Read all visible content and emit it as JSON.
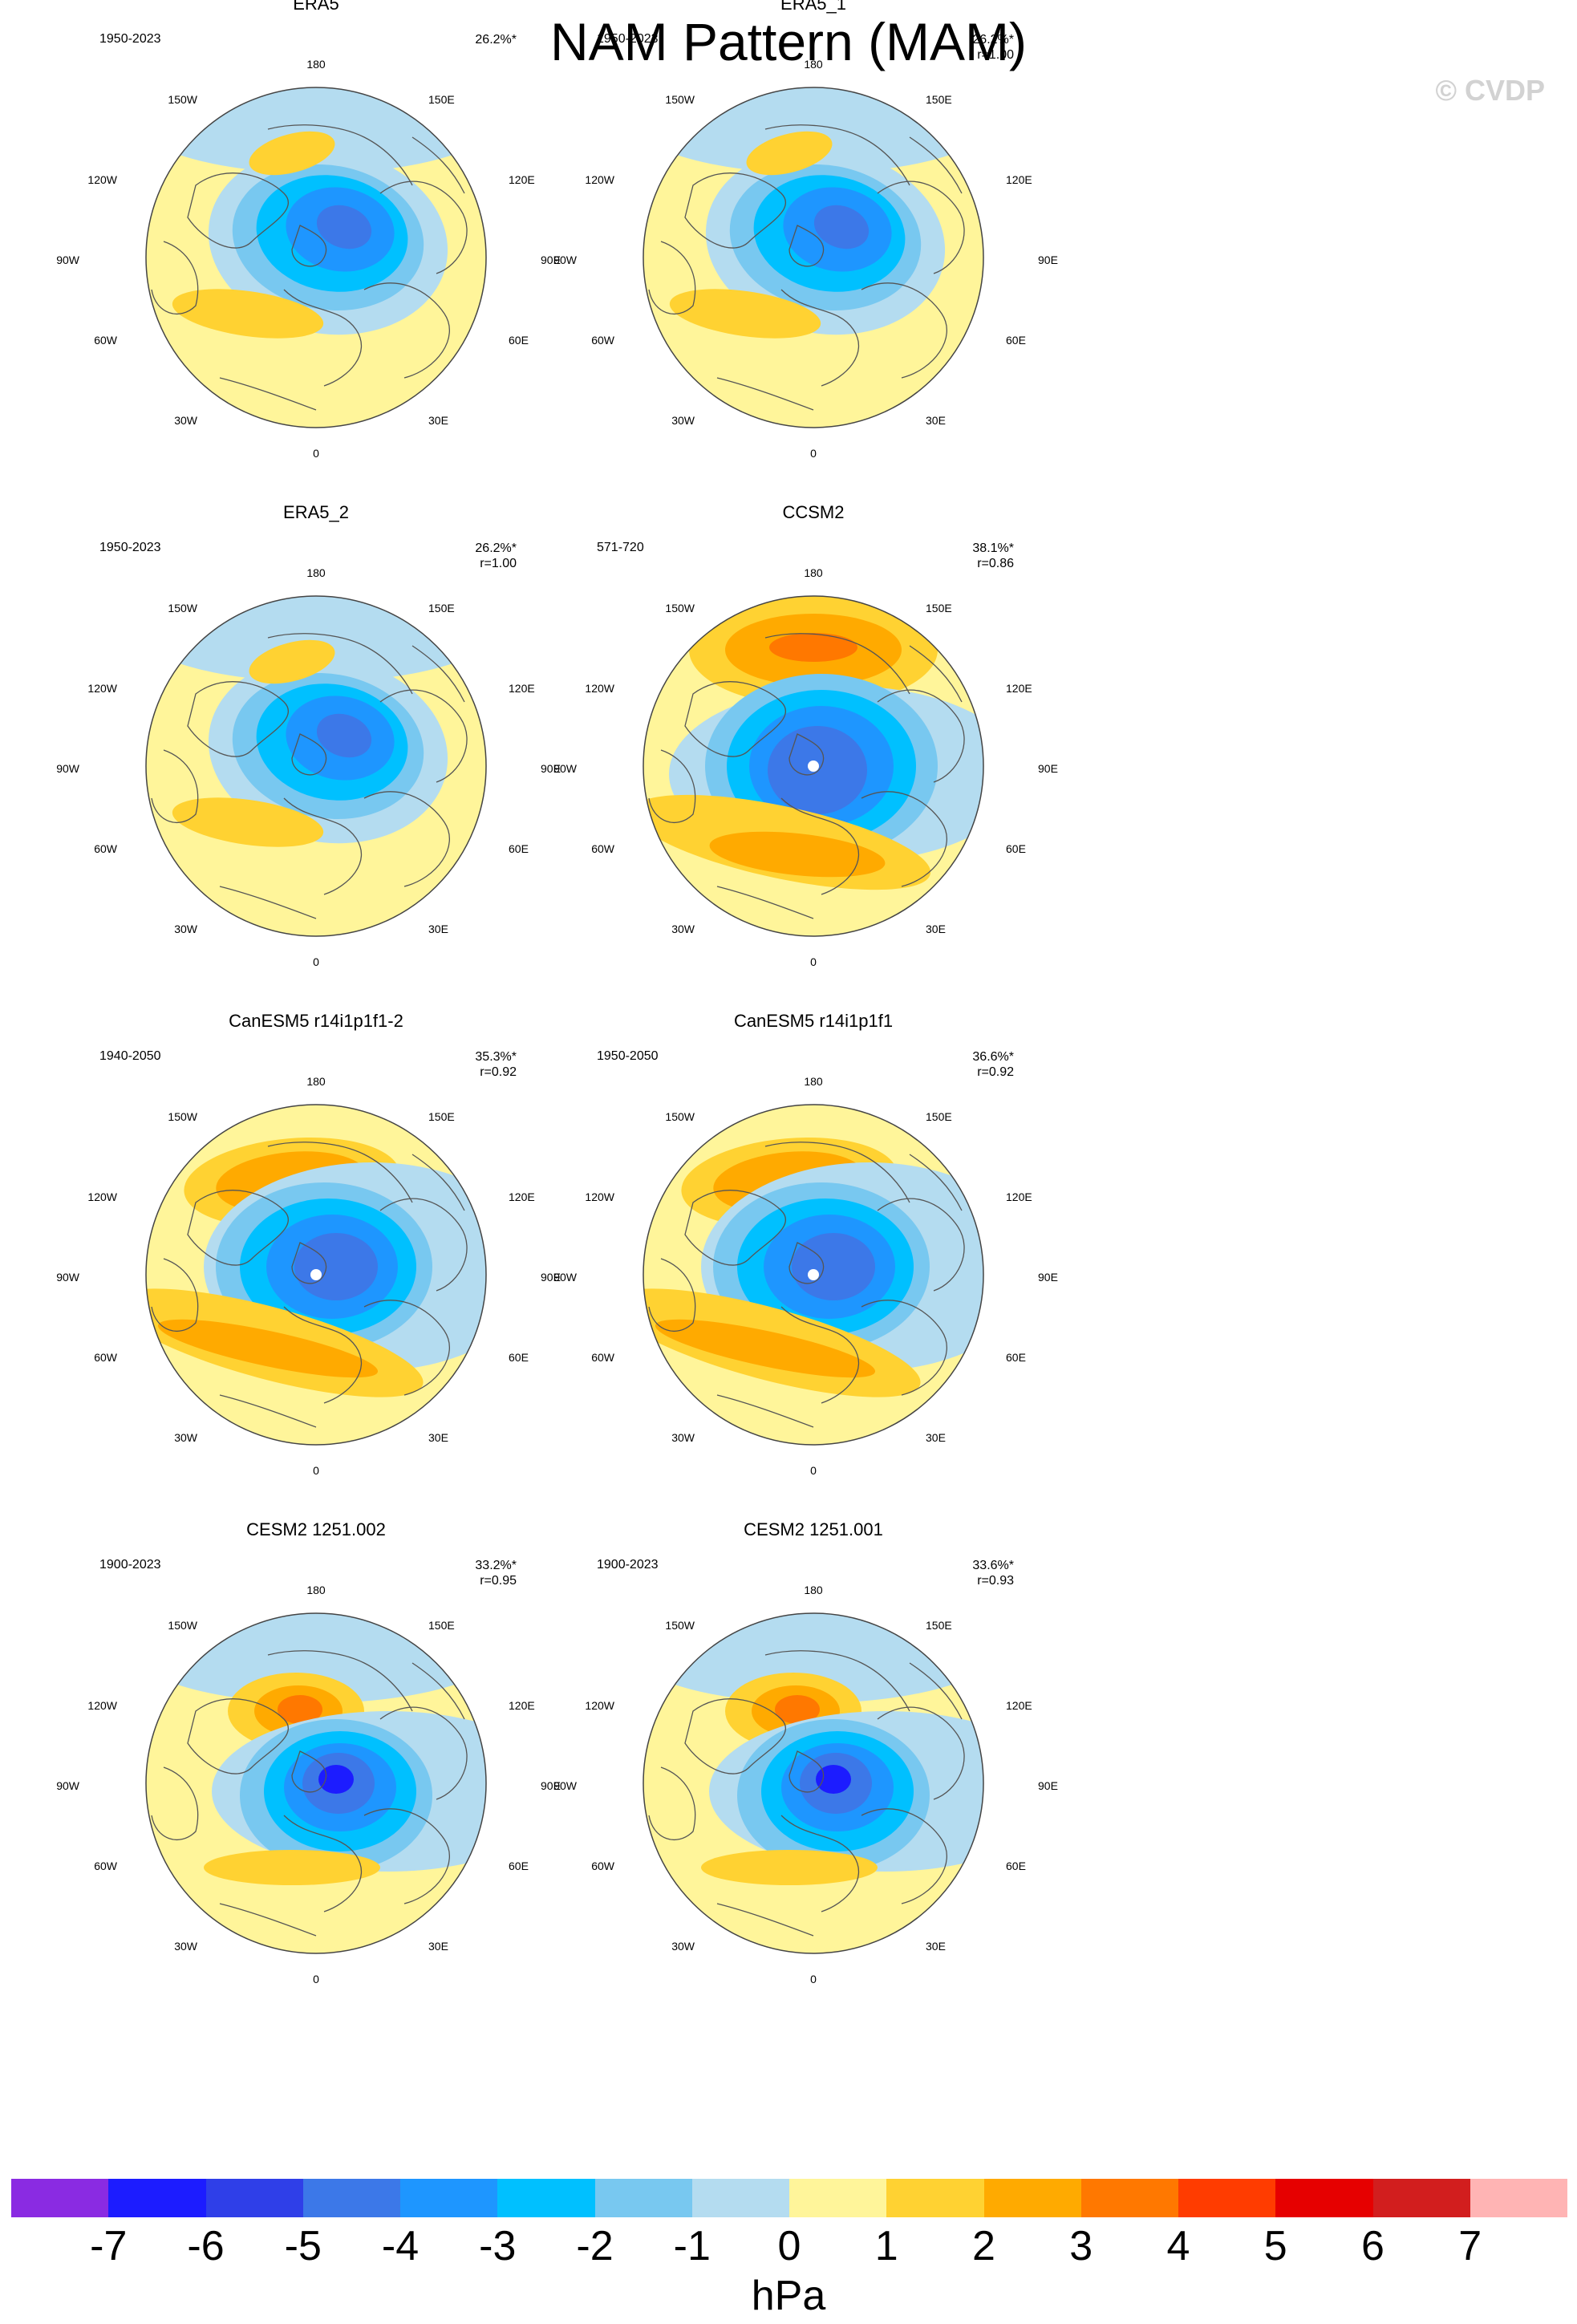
{
  "figure": {
    "title": "NAM Pattern (MAM)",
    "watermark": "© CVDP"
  },
  "map_labels": {
    "top": "180",
    "bottom": "0",
    "left": "90W",
    "right": "90E",
    "upper_left_1": "150W",
    "upper_left_2": "120W",
    "lower_left_1": "60W",
    "lower_left_2": "30W",
    "upper_right_1": "150E",
    "upper_right_2": "120E",
    "lower_right_1": "60E",
    "lower_right_2": "30E"
  },
  "panels": [
    {
      "name": "ERA5",
      "period": "1950-2023",
      "variance": "26.2%*",
      "r": ""
    },
    {
      "name": "ERA5_1",
      "period": "1950-2023",
      "variance": "26.2%*",
      "r": "r=1.00"
    },
    {
      "name": "ERA5_2",
      "period": "1950-2023",
      "variance": "26.2%*",
      "r": "r=1.00"
    },
    {
      "name": "CCSM2",
      "period": "571-720",
      "variance": "38.1%*",
      "r": "r=0.86"
    },
    {
      "name": "CanESM5 r14i1p1f1-2",
      "period": "1940-2050",
      "variance": "35.3%*",
      "r": "r=0.92"
    },
    {
      "name": "CanESM5 r14i1p1f1",
      "period": "1950-2050",
      "variance": "36.6%*",
      "r": "r=0.92"
    },
    {
      "name": "CESM2 1251.002",
      "period": "1900-2023",
      "variance": "33.2%*",
      "r": "r=0.95"
    },
    {
      "name": "CESM2 1251.001",
      "period": "1900-2023",
      "variance": "33.6%*",
      "r": "r=0.93"
    }
  ],
  "colorbar": {
    "units": "hPa",
    "ticks": [
      "-7",
      "-6",
      "-5",
      "-4",
      "-3",
      "-2",
      "-1",
      "0",
      "1",
      "2",
      "3",
      "4",
      "5",
      "6",
      "7"
    ],
    "colors": [
      "#8a2be2",
      "#1c1cff",
      "#2f3fe8",
      "#3c78e8",
      "#1e96ff",
      "#00c0ff",
      "#78c8f0",
      "#b4dcf0",
      "#fff59a",
      "#ffd232",
      "#ffaa00",
      "#ff7800",
      "#ff3c00",
      "#e60000",
      "#d21e1e",
      "#ffb4b4"
    ]
  },
  "colors": {
    "zero_pos": "#fff59a",
    "zero_neg": "#b4dcf0",
    "neg1": "#78c8f0",
    "neg2": "#00c0ff",
    "neg3": "#1e96ff",
    "neg4": "#3c78e8",
    "neg5": "#2f3fe8",
    "neg6": "#1c1cff",
    "pos1": "#ffd232",
    "pos2": "#ffaa00",
    "pos3": "#ff7800",
    "coast": "#555555"
  }
}
